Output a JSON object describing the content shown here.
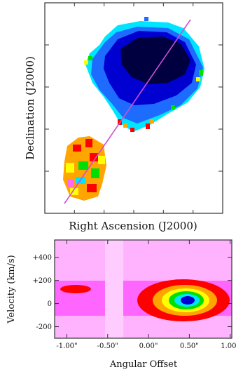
{
  "chart_data": [
    {
      "type": "heatmap",
      "panel": "top",
      "xlabel": "Right Ascension (J2000)",
      "ylabel": "Declination (J2000)",
      "grid": false,
      "tick_labels_shown": false,
      "overlay_line": {
        "color": "#d04fd0",
        "description_from_plot": "diagonal slit line from lower-left to upper-right"
      },
      "color_scale": [
        "#ff0000",
        "#ffa500",
        "#ffff00",
        "#00e000",
        "#00e5ff",
        "#1e6bff",
        "#0000d0",
        "#000040"
      ]
    },
    {
      "type": "heatmap",
      "panel": "bottom",
      "xlabel": "Angular Offset",
      "ylabel": "Velocity (km/s)",
      "x_ticks": [
        "-1.00\"",
        "-0.50\"",
        "0.00\"",
        "0.50\"",
        "1.00\""
      ],
      "x_tick_values": [
        -1.0,
        -0.5,
        0.0,
        0.5,
        1.0
      ],
      "y_ticks": [
        "+400",
        "+200",
        "0",
        "-200"
      ],
      "y_tick_values": [
        400,
        200,
        0,
        -200
      ],
      "xlim": [
        -1.15,
        1.02
      ],
      "ylim": [
        -300,
        550
      ],
      "grid": false,
      "features": [
        {
          "kind": "compact emission",
          "x_center": -0.9,
          "y_center": 110,
          "peak_level": "red"
        },
        {
          "kind": "bright emission",
          "x_center": 0.45,
          "y_center": 60,
          "peak_level": "dark blue"
        }
      ],
      "color_scale": [
        "#ff66ff",
        "#ff0000",
        "#ffa500",
        "#ffff00",
        "#00e000",
        "#00e5ff",
        "#0000d0"
      ]
    }
  ]
}
